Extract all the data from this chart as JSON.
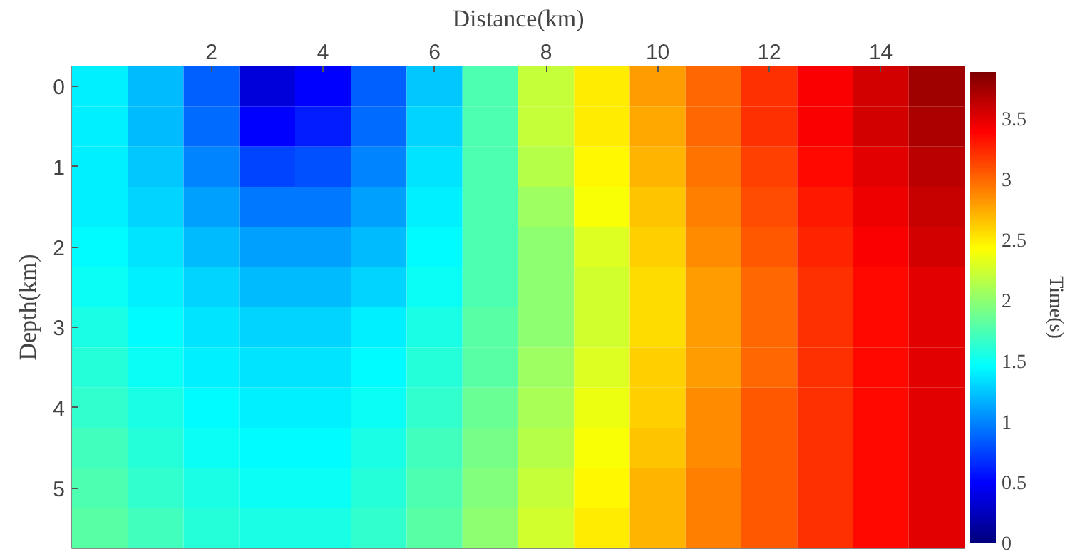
{
  "chart_data": {
    "type": "heatmap",
    "xlabel": "Distance(km)",
    "ylabel": "Depth(km)",
    "clabel": "Time(s)",
    "categories": [
      null,
      null,
      "2",
      null,
      "4",
      null,
      "6",
      null,
      "8",
      null,
      "10",
      null,
      "12",
      null,
      "14",
      null
    ],
    "y_categories": [
      "0",
      null,
      "1",
      null,
      "2",
      null,
      "3",
      null,
      "4",
      null,
      "5",
      null
    ],
    "cells": [
      [
        1.4,
        1.2,
        0.85,
        0.35,
        0.5,
        0.85,
        1.25,
        1.75,
        2.2,
        2.5,
        2.8,
        3.0,
        3.2,
        3.4,
        3.55,
        3.75
      ],
      [
        1.4,
        1.2,
        0.9,
        0.5,
        0.6,
        0.9,
        1.3,
        1.75,
        2.2,
        2.5,
        2.75,
        3.0,
        3.2,
        3.4,
        3.55,
        3.7
      ],
      [
        1.4,
        1.25,
        1.0,
        0.75,
        0.8,
        1.0,
        1.35,
        1.75,
        2.15,
        2.45,
        2.7,
        2.95,
        3.15,
        3.35,
        3.5,
        3.65
      ],
      [
        1.4,
        1.3,
        1.1,
        0.95,
        0.95,
        1.1,
        1.4,
        1.75,
        2.05,
        2.4,
        2.65,
        2.9,
        3.1,
        3.3,
        3.45,
        3.6
      ],
      [
        1.45,
        1.35,
        1.2,
        1.1,
        1.1,
        1.2,
        1.45,
        1.75,
        2.0,
        2.3,
        2.6,
        2.85,
        3.05,
        3.25,
        3.4,
        3.55
      ],
      [
        1.5,
        1.4,
        1.3,
        1.2,
        1.2,
        1.3,
        1.5,
        1.75,
        2.0,
        2.25,
        2.55,
        2.8,
        3.0,
        3.2,
        3.35,
        3.5
      ],
      [
        1.55,
        1.45,
        1.35,
        1.3,
        1.3,
        1.4,
        1.55,
        1.8,
        2.0,
        2.25,
        2.55,
        2.8,
        3.0,
        3.2,
        3.35,
        3.5
      ],
      [
        1.6,
        1.5,
        1.4,
        1.35,
        1.35,
        1.45,
        1.6,
        1.8,
        2.05,
        2.3,
        2.6,
        2.8,
        3.0,
        3.2,
        3.35,
        3.5
      ],
      [
        1.65,
        1.55,
        1.45,
        1.4,
        1.4,
        1.5,
        1.65,
        1.85,
        2.1,
        2.35,
        2.6,
        2.85,
        3.05,
        3.2,
        3.35,
        3.5
      ],
      [
        1.7,
        1.6,
        1.5,
        1.45,
        1.45,
        1.55,
        1.7,
        1.9,
        2.15,
        2.4,
        2.65,
        2.85,
        3.05,
        3.2,
        3.35,
        3.5
      ],
      [
        1.75,
        1.65,
        1.55,
        1.5,
        1.5,
        1.6,
        1.75,
        1.95,
        2.2,
        2.45,
        2.7,
        2.9,
        3.05,
        3.2,
        3.35,
        3.5
      ],
      [
        1.8,
        1.7,
        1.6,
        1.55,
        1.55,
        1.65,
        1.8,
        2.0,
        2.25,
        2.5,
        2.7,
        2.9,
        3.05,
        3.2,
        3.35,
        3.5
      ]
    ],
    "clim": [
      0,
      3.88
    ],
    "cticks": [
      0,
      0.5,
      1,
      1.5,
      2,
      2.5,
      3,
      3.5
    ],
    "grid": false
  }
}
